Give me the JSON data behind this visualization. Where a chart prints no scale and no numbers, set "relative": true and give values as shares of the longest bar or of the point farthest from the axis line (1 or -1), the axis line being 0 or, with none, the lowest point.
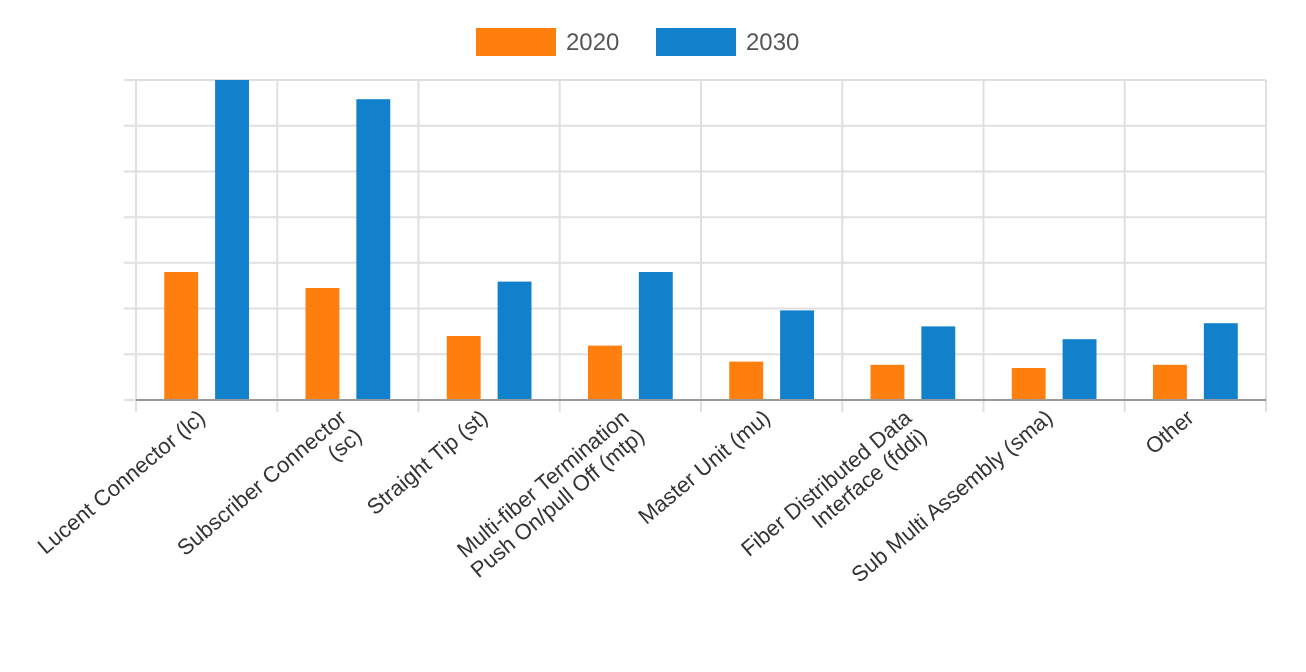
{
  "chart_data": {
    "type": "bar",
    "relative": true,
    "grid": true,
    "legend": "top",
    "categories": [
      "Lucent Connector (lc)",
      "Subscriber Connector (sc)",
      "Straight Tip (st)",
      "Multi-fiber Termination Push On/pull Off (mtp)",
      "Master Unit (mu)",
      "Fiber Distributed Data Interface (fddi)",
      "Sub Multi Assembly (sma)",
      "Other"
    ],
    "series": [
      {
        "name": "2020",
        "color": "#ff7f0e",
        "values": [
          0.4,
          0.35,
          0.2,
          0.17,
          0.12,
          0.11,
          0.1,
          0.11
        ]
      },
      {
        "name": "2030",
        "color": "#1181cc",
        "values": [
          1,
          0.94,
          0.37,
          0.4,
          0.28,
          0.23,
          0.19,
          0.24
        ]
      }
    ]
  }
}
